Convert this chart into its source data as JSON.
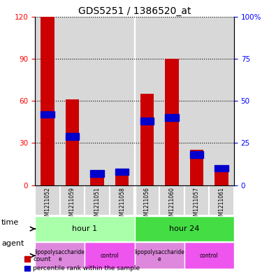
{
  "title": "GDS5251 / 1386520_at",
  "samples": [
    "GSM1211052",
    "GSM1211059",
    "GSM1211051",
    "GSM1211058",
    "GSM1211056",
    "GSM1211060",
    "GSM1211057",
    "GSM1211061"
  ],
  "counts": [
    120,
    61,
    8,
    11,
    65,
    90,
    25,
    11
  ],
  "percentiles": [
    42,
    29,
    7,
    8,
    38,
    40,
    18,
    10
  ],
  "percentile_bar_height": 4,
  "ylim_left": [
    0,
    120
  ],
  "ylim_right": [
    0,
    100
  ],
  "yticks_left": [
    0,
    30,
    60,
    90,
    120
  ],
  "yticks_right": [
    0,
    25,
    50,
    75,
    100
  ],
  "ytick_labels_right": [
    "0",
    "25",
    "50",
    "75",
    "100%"
  ],
  "bar_color": "#cc0000",
  "percentile_color": "#0000cc",
  "background_color": "#ffffff",
  "plot_bg_color": "#d8d8d8",
  "col_sep_color": "#ffffff",
  "time_groups": [
    {
      "label": "hour 1",
      "start": 0,
      "end": 4,
      "color": "#aaffaa"
    },
    {
      "label": "hour 24",
      "start": 4,
      "end": 8,
      "color": "#44dd44"
    }
  ],
  "agent_groups": [
    {
      "label": "lipopolysaccharide\ne",
      "start": 0,
      "end": 2,
      "color": "#dd88dd"
    },
    {
      "label": "control",
      "start": 2,
      "end": 4,
      "color": "#ee55ee"
    },
    {
      "label": "lipopolysaccharide\ne",
      "start": 4,
      "end": 6,
      "color": "#dd88dd"
    },
    {
      "label": "control",
      "start": 6,
      "end": 8,
      "color": "#ee55ee"
    }
  ],
  "bar_width": 0.55,
  "time_label": "time",
  "agent_label": "agent",
  "legend_count_color": "#cc0000",
  "legend_percentile_color": "#0000cc"
}
